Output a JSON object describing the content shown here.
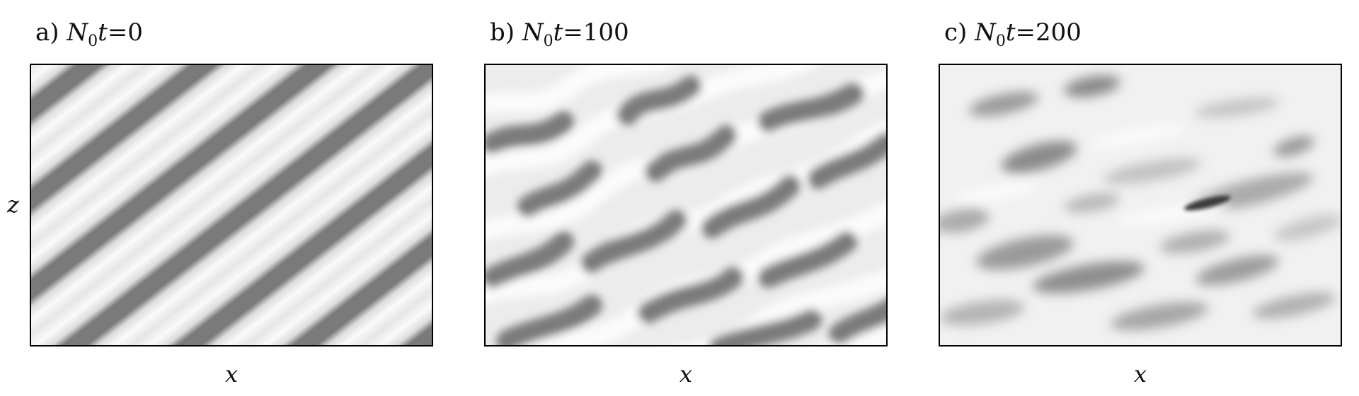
{
  "panels": [
    {
      "id": "a",
      "prefix": "a)",
      "symbol": "N",
      "subscript": "0",
      "var": "t",
      "eq": "=",
      "value": "0"
    },
    {
      "id": "b",
      "prefix": "b)",
      "symbol": "N",
      "subscript": "0",
      "var": "t",
      "eq": "=",
      "value": "100"
    },
    {
      "id": "c",
      "prefix": "c)",
      "symbol": "N",
      "subscript": "0",
      "var": "t",
      "eq": "=",
      "value": "200"
    }
  ],
  "axes": {
    "x_label": "x",
    "z_label": "z"
  },
  "colors": {
    "light": "#e6e6e6",
    "white": "#fafafa",
    "dark": "#7a7a7a",
    "darkest": "#3a3a3a",
    "frame": "#000000"
  }
}
